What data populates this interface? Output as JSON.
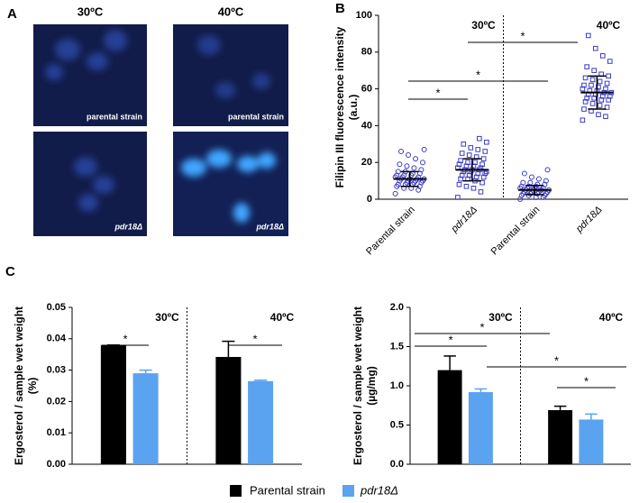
{
  "figure": {
    "panel_labels": [
      "A",
      "B",
      "C"
    ],
    "image_columns": [
      "30ºC",
      "40ºC"
    ],
    "image_labels": [
      "parental strain",
      "parental strain",
      "pdr18Δ",
      "pdr18Δ"
    ]
  },
  "chart_data": [
    {
      "type": "dotplot",
      "ylabel": "Filipin III fluorescence intensity",
      "yunit": "(a.u.)",
      "categories": [
        "Parental strain",
        "pdr18Δ",
        "Parental strain",
        "pdr18Δ"
      ],
      "group_labels": [
        "30ºC",
        "40ºC"
      ],
      "significance": [
        "*",
        "*",
        "*"
      ],
      "color": "#3b3bc8",
      "markers": [
        "circle",
        "square",
        "circle",
        "square"
      ],
      "points": [
        [
          3,
          5,
          6,
          6,
          7,
          7,
          8,
          8,
          8,
          9,
          9,
          9,
          10,
          10,
          10,
          10,
          11,
          11,
          11,
          11,
          12,
          12,
          12,
          13,
          13,
          13,
          14,
          14,
          15,
          15,
          16,
          17,
          18,
          19,
          20,
          22,
          24,
          26,
          27
        ],
        [
          1,
          4,
          6,
          7,
          8,
          9,
          10,
          11,
          11,
          12,
          12,
          13,
          13,
          14,
          14,
          15,
          15,
          15,
          16,
          16,
          16,
          17,
          17,
          18,
          18,
          19,
          19,
          20,
          20,
          21,
          22,
          23,
          24,
          25,
          26,
          27,
          28,
          30,
          31,
          33
        ],
        [
          0,
          1,
          1,
          2,
          2,
          2,
          3,
          3,
          3,
          3,
          4,
          4,
          4,
          4,
          5,
          5,
          5,
          5,
          5,
          6,
          6,
          6,
          6,
          7,
          7,
          7,
          8,
          8,
          9,
          9,
          10,
          11,
          12,
          14,
          16
        ],
        [
          43,
          45,
          46,
          48,
          49,
          50,
          51,
          52,
          53,
          54,
          54,
          55,
          55,
          56,
          56,
          57,
          57,
          58,
          58,
          59,
          59,
          60,
          60,
          61,
          62,
          62,
          63,
          64,
          65,
          66,
          67,
          68,
          70,
          72,
          75,
          78,
          82,
          89
        ]
      ],
      "values": [
        11,
        16,
        5,
        58
      ],
      "errors": [
        4,
        6,
        2.5,
        9
      ],
      "ylim": [
        0,
        100
      ],
      "yticks": [
        0,
        20,
        40,
        60,
        80,
        100
      ]
    },
    {
      "type": "bar",
      "ylabel": "Ergosterol / sample wet weight",
      "yunit": "(%)",
      "categories": [
        "30ºC",
        "40ºC"
      ],
      "significance": [
        "*",
        "*"
      ],
      "series": [
        {
          "name": "Parental strain",
          "color": "#000000",
          "values": [
            0.038,
            0.0342
          ],
          "errors": [
            0,
            0.005
          ]
        },
        {
          "name": "pdr18Δ",
          "color": "#5aa3f0",
          "values": [
            0.029,
            0.0265
          ],
          "errors": [
            0.001,
            0.0003
          ]
        }
      ],
      "ylim": [
        0,
        0.05
      ],
      "yticks": [
        {
          "value": 0,
          "label": "0.00"
        },
        0.01,
        0.02,
        0.03,
        0.04,
        0.05
      ]
    },
    {
      "type": "bar",
      "ylabel": "Ergosterol / sample wet weight",
      "yunit": "(µg/mg)",
      "categories": [
        "30ºC",
        "40ºC"
      ],
      "significance": [
        "*",
        "*",
        "*",
        "*"
      ],
      "series": [
        {
          "color": "#000000",
          "values": [
            1.2,
            0.69
          ],
          "errors": [
            0.18,
            0.05
          ]
        },
        {
          "color": "#5aa3f0",
          "values": [
            0.92,
            0.57
          ],
          "errors": [
            0.04,
            0.07
          ]
        }
      ],
      "ylim": [
        0,
        2
      ],
      "yticks": [
        {
          "value": 0,
          "label": "0.0"
        },
        0.5,
        {
          "value": 1,
          "label": "1.0"
        },
        1.5,
        {
          "value": 2,
          "label": "2.0"
        }
      ]
    }
  ]
}
